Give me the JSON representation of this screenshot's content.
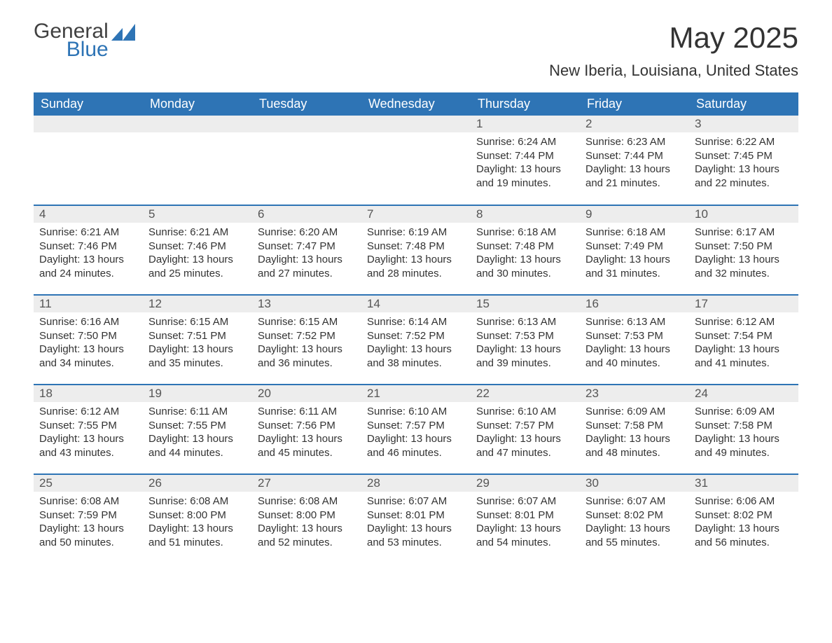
{
  "logo": {
    "word1": "General",
    "word2": "Blue",
    "brand_color": "#2e74b5",
    "text_color": "#414141"
  },
  "title": "May 2025",
  "subtitle": "New Iberia, Louisiana, United States",
  "header_bg": "#2e74b5",
  "header_fg": "#ffffff",
  "daynum_bg": "#ededed",
  "border_color": "#2e74b5",
  "columns": [
    "Sunday",
    "Monday",
    "Tuesday",
    "Wednesday",
    "Thursday",
    "Friday",
    "Saturday"
  ],
  "weeks": [
    [
      null,
      null,
      null,
      null,
      {
        "n": "1",
        "sunrise": "6:24 AM",
        "sunset": "7:44 PM",
        "daylight": "13 hours and 19 minutes."
      },
      {
        "n": "2",
        "sunrise": "6:23 AM",
        "sunset": "7:44 PM",
        "daylight": "13 hours and 21 minutes."
      },
      {
        "n": "3",
        "sunrise": "6:22 AM",
        "sunset": "7:45 PM",
        "daylight": "13 hours and 22 minutes."
      }
    ],
    [
      {
        "n": "4",
        "sunrise": "6:21 AM",
        "sunset": "7:46 PM",
        "daylight": "13 hours and 24 minutes."
      },
      {
        "n": "5",
        "sunrise": "6:21 AM",
        "sunset": "7:46 PM",
        "daylight": "13 hours and 25 minutes."
      },
      {
        "n": "6",
        "sunrise": "6:20 AM",
        "sunset": "7:47 PM",
        "daylight": "13 hours and 27 minutes."
      },
      {
        "n": "7",
        "sunrise": "6:19 AM",
        "sunset": "7:48 PM",
        "daylight": "13 hours and 28 minutes."
      },
      {
        "n": "8",
        "sunrise": "6:18 AM",
        "sunset": "7:48 PM",
        "daylight": "13 hours and 30 minutes."
      },
      {
        "n": "9",
        "sunrise": "6:18 AM",
        "sunset": "7:49 PM",
        "daylight": "13 hours and 31 minutes."
      },
      {
        "n": "10",
        "sunrise": "6:17 AM",
        "sunset": "7:50 PM",
        "daylight": "13 hours and 32 minutes."
      }
    ],
    [
      {
        "n": "11",
        "sunrise": "6:16 AM",
        "sunset": "7:50 PM",
        "daylight": "13 hours and 34 minutes."
      },
      {
        "n": "12",
        "sunrise": "6:15 AM",
        "sunset": "7:51 PM",
        "daylight": "13 hours and 35 minutes."
      },
      {
        "n": "13",
        "sunrise": "6:15 AM",
        "sunset": "7:52 PM",
        "daylight": "13 hours and 36 minutes."
      },
      {
        "n": "14",
        "sunrise": "6:14 AM",
        "sunset": "7:52 PM",
        "daylight": "13 hours and 38 minutes."
      },
      {
        "n": "15",
        "sunrise": "6:13 AM",
        "sunset": "7:53 PM",
        "daylight": "13 hours and 39 minutes."
      },
      {
        "n": "16",
        "sunrise": "6:13 AM",
        "sunset": "7:53 PM",
        "daylight": "13 hours and 40 minutes."
      },
      {
        "n": "17",
        "sunrise": "6:12 AM",
        "sunset": "7:54 PM",
        "daylight": "13 hours and 41 minutes."
      }
    ],
    [
      {
        "n": "18",
        "sunrise": "6:12 AM",
        "sunset": "7:55 PM",
        "daylight": "13 hours and 43 minutes."
      },
      {
        "n": "19",
        "sunrise": "6:11 AM",
        "sunset": "7:55 PM",
        "daylight": "13 hours and 44 minutes."
      },
      {
        "n": "20",
        "sunrise": "6:11 AM",
        "sunset": "7:56 PM",
        "daylight": "13 hours and 45 minutes."
      },
      {
        "n": "21",
        "sunrise": "6:10 AM",
        "sunset": "7:57 PM",
        "daylight": "13 hours and 46 minutes."
      },
      {
        "n": "22",
        "sunrise": "6:10 AM",
        "sunset": "7:57 PM",
        "daylight": "13 hours and 47 minutes."
      },
      {
        "n": "23",
        "sunrise": "6:09 AM",
        "sunset": "7:58 PM",
        "daylight": "13 hours and 48 minutes."
      },
      {
        "n": "24",
        "sunrise": "6:09 AM",
        "sunset": "7:58 PM",
        "daylight": "13 hours and 49 minutes."
      }
    ],
    [
      {
        "n": "25",
        "sunrise": "6:08 AM",
        "sunset": "7:59 PM",
        "daylight": "13 hours and 50 minutes."
      },
      {
        "n": "26",
        "sunrise": "6:08 AM",
        "sunset": "8:00 PM",
        "daylight": "13 hours and 51 minutes."
      },
      {
        "n": "27",
        "sunrise": "6:08 AM",
        "sunset": "8:00 PM",
        "daylight": "13 hours and 52 minutes."
      },
      {
        "n": "28",
        "sunrise": "6:07 AM",
        "sunset": "8:01 PM",
        "daylight": "13 hours and 53 minutes."
      },
      {
        "n": "29",
        "sunrise": "6:07 AM",
        "sunset": "8:01 PM",
        "daylight": "13 hours and 54 minutes."
      },
      {
        "n": "30",
        "sunrise": "6:07 AM",
        "sunset": "8:02 PM",
        "daylight": "13 hours and 55 minutes."
      },
      {
        "n": "31",
        "sunrise": "6:06 AM",
        "sunset": "8:02 PM",
        "daylight": "13 hours and 56 minutes."
      }
    ]
  ],
  "labels": {
    "sunrise": "Sunrise:",
    "sunset": "Sunset:",
    "daylight": "Daylight:"
  }
}
